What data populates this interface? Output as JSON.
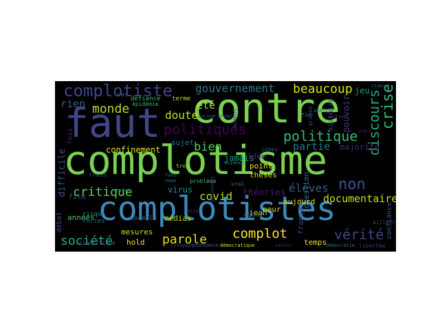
{
  "figure": {
    "background": "#000000",
    "page_background": "#ffffff"
  },
  "words": [
    {
      "text": "complotisme",
      "color": "#7ad151"
    },
    {
      "text": "complotistes",
      "color": "#3b8bbb"
    },
    {
      "text": "faut",
      "color": "#404688"
    },
    {
      "text": "contre",
      "color": "#7ad151"
    },
    {
      "text": "complotiste",
      "color": "#414487"
    },
    {
      "text": "gouvernement",
      "color": "#2a788e"
    },
    {
      "text": "beaucoup",
      "color": "#d8e219"
    },
    {
      "text": "crise",
      "color": "#35b779"
    },
    {
      "text": "discours",
      "color": "#22a884"
    },
    {
      "text": "politique",
      "color": "#35b779"
    },
    {
      "text": "politiques",
      "color": "#440154"
    },
    {
      "text": "monde",
      "color": "#b5de2b"
    },
    {
      "text": "rien",
      "color": "#355f8d"
    },
    {
      "text": "doute",
      "color": "#c2df23"
    },
    {
      "text": "été",
      "color": "#bddf26"
    },
    {
      "text": "bien",
      "color": "#5ec962"
    },
    {
      "text": "partie",
      "color": "#2a788e"
    },
    {
      "text": "non",
      "color": "#3b528b"
    },
    {
      "text": "critique",
      "color": "#5ec962"
    },
    {
      "text": "élèves",
      "color": "#355f8d"
    },
    {
      "text": "covid",
      "color": "#b5de2b"
    },
    {
      "text": "documentaire",
      "color": "#c8e020"
    },
    {
      "text": "société",
      "color": "#28ae80"
    },
    {
      "text": "parole",
      "color": "#e5e419"
    },
    {
      "text": "complot",
      "color": "#fde725"
    },
    {
      "text": "vérité",
      "color": "#414487"
    },
    {
      "text": "jeu",
      "color": "#1f9e89"
    },
    {
      "text": "pouvoir",
      "color": "#46337e"
    },
    {
      "text": "histoire",
      "color": "#3e4a89"
    },
    {
      "text": "confinement",
      "color": "#dde318"
    },
    {
      "text": "jamais",
      "color": "#1f9e89"
    },
    {
      "text": "sujet",
      "color": "#2c728e"
    },
    {
      "text": "années",
      "color": "#4ac16d"
    },
    {
      "text": "difficile",
      "color": "#3b528b"
    },
    {
      "text": "virus",
      "color": "#21918c"
    },
    {
      "text": "médias",
      "color": "#c0df25"
    },
    {
      "text": "théories",
      "color": "#481a6c"
    },
    {
      "text": "point",
      "color": "#fde725"
    },
    {
      "text": "thèses",
      "color": "#e7e419"
    },
    {
      "text": "idée",
      "color": "#482878"
    },
    {
      "text": "question",
      "color": "#2d708e"
    },
    {
      "text": "français",
      "color": "#404688"
    },
    {
      "text": "majorité",
      "color": "#482475"
    },
    {
      "text": "peur",
      "color": "#dde318"
    },
    {
      "text": "aujourd",
      "color": "#d2e21b"
    },
    {
      "text": "cause",
      "color": "#3f4788"
    },
    {
      "text": "mesures",
      "color": "#c5e021"
    },
    {
      "text": "hold",
      "color": "#fde725"
    },
    {
      "text": "débat",
      "color": "#3f4889"
    },
    {
      "text": "film",
      "color": "#31668e"
    },
    {
      "text": "temps",
      "color": "#e5e419"
    },
    {
      "text": "jean",
      "color": "#a2da37"
    },
    {
      "text": "confiance",
      "color": "#355f8d"
    },
    {
      "text": "cas",
      "color": "#3b528b"
    },
    {
      "text": "défiance",
      "color": "#35b779"
    },
    {
      "text": "terme",
      "color": "#c2df23"
    },
    {
      "text": "fois",
      "color": "#482475"
    },
    {
      "text": "exemple",
      "color": "#2e6e8e"
    },
    {
      "text": "forces",
      "color": "#2c728e"
    },
    {
      "text": "risque",
      "color": "#21918c"
    },
    {
      "text": "scientifique",
      "color": "#31688e"
    },
    {
      "text": "citoyens",
      "color": "#3e4c8a"
    },
    {
      "text": "phénomène",
      "color": "#3b528b"
    },
    {
      "text": "démocratique",
      "color": "#dde318"
    },
    {
      "text": "problème",
      "color": "#4ac16d"
    },
    {
      "text": "libertée",
      "color": "#453781"
    },
    {
      "text": "savoir",
      "color": "#482878"
    },
    {
      "text": "démocratie",
      "color": "#2c728e"
    },
    {
      "text": "épidémie",
      "color": "#35b779"
    },
    {
      "text": "aucune",
      "color": "#3b528b"
    },
    {
      "text": "trump",
      "color": "#414487"
    },
    {
      "text": "moment",
      "color": "#453781"
    },
    {
      "text": "fin",
      "color": "#27808e"
    },
    {
      "text": "autant",
      "color": "#481f70"
    },
    {
      "text": "classe",
      "color": "#2c728e"
    },
    {
      "text": "propos",
      "color": "#3e4a89"
    },
    {
      "text": "analyse",
      "color": "#31688e"
    },
    {
      "text": "France",
      "color": "#3b528b"
    },
    {
      "text": "ailleurs",
      "color": "#46337e"
    },
    {
      "text": "science",
      "color": "#1f9e89"
    },
    {
      "text": "trop",
      "color": "#c0df25"
    },
    {
      "text": "personnes",
      "color": "#3e4a89"
    },
    {
      "text": "vrai",
      "color": "#2a788e"
    },
    {
      "text": "faire",
      "color": "#21918c"
    },
    {
      "text": "mise",
      "color": "#482475"
    },
    {
      "text": "fake",
      "color": "#3b528b"
    },
    {
      "text": "news",
      "color": "#2c728e"
    },
    {
      "text": "ordre",
      "color": "#481a6c"
    },
    {
      "text": "idées",
      "color": "#3e4c8a"
    }
  ]
}
